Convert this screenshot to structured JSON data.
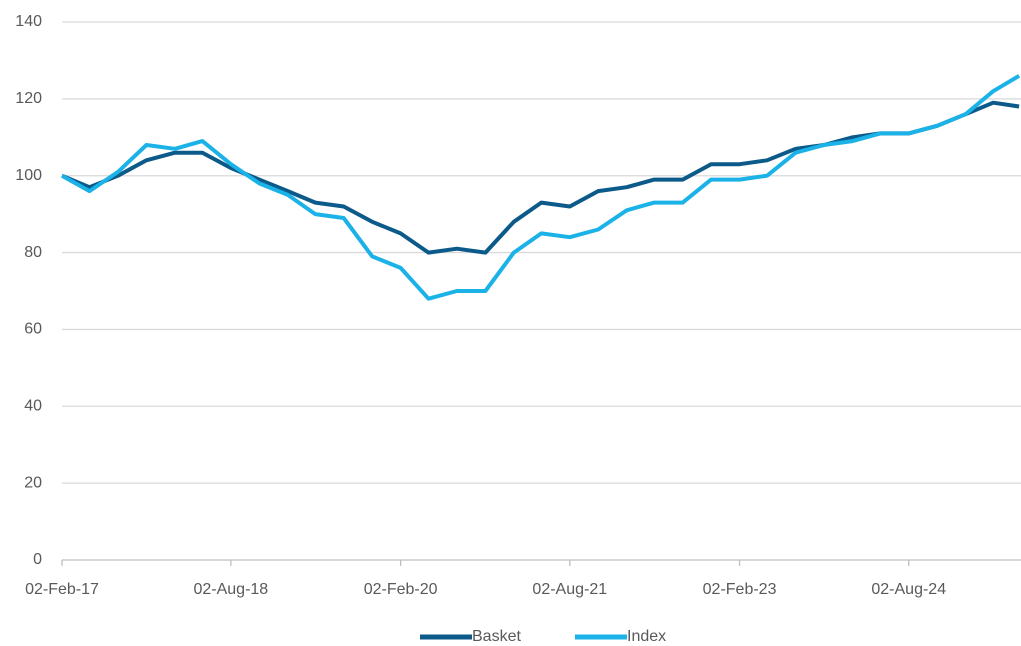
{
  "chart_data": {
    "type": "line",
    "x": [
      "2017-02-02",
      "2017-05-02",
      "2017-08-02",
      "2017-11-02",
      "2018-02-02",
      "2018-05-02",
      "2018-08-02",
      "2018-11-02",
      "2019-02-02",
      "2019-05-02",
      "2019-08-02",
      "2019-11-02",
      "2020-02-02",
      "2020-05-02",
      "2020-08-02",
      "2020-11-02",
      "2021-02-02",
      "2021-05-02",
      "2021-08-02",
      "2021-11-02",
      "2022-02-02",
      "2022-05-02",
      "2022-08-02",
      "2022-11-02",
      "2023-02-02",
      "2023-05-02",
      "2023-08-02",
      "2023-11-02",
      "2024-02-02",
      "2024-05-02",
      "2024-08-02",
      "2024-11-02",
      "2025-02-02",
      "2025-05-02",
      "2025-07-25"
    ],
    "series": [
      {
        "name": "Basket",
        "color": "#0b5a8a",
        "values": [
          100,
          97,
          100,
          104,
          106,
          106,
          102,
          99,
          96,
          93,
          92,
          88,
          85,
          80,
          81,
          80,
          88,
          93,
          92,
          96,
          97,
          99,
          99,
          103,
          103,
          104,
          107,
          108,
          110,
          111,
          111,
          113,
          116,
          119,
          118
        ]
      },
      {
        "name": "Index",
        "color": "#1bb2e8",
        "values": [
          100,
          96,
          101,
          108,
          107,
          109,
          103,
          98,
          95,
          90,
          89,
          79,
          76,
          68,
          70,
          70,
          80,
          85,
          84,
          86,
          91,
          93,
          93,
          99,
          99,
          100,
          106,
          108,
          109,
          111,
          111,
          113,
          116,
          122,
          126
        ]
      }
    ],
    "xlim": [
      "2017-02-02",
      "2025-07-31"
    ],
    "xticks": [
      {
        "value": "2017-02-02",
        "label": "02-Feb-17"
      },
      {
        "value": "2018-08-02",
        "label": "02-Aug-18"
      },
      {
        "value": "2020-02-02",
        "label": "02-Feb-20"
      },
      {
        "value": "2021-08-02",
        "label": "02-Aug-21"
      },
      {
        "value": "2023-02-02",
        "label": "02-Feb-23"
      },
      {
        "value": "2024-08-02",
        "label": "02-Aug-24"
      }
    ],
    "ylim": [
      0,
      140
    ],
    "yticks": [
      0,
      20,
      40,
      60,
      80,
      100,
      120,
      140
    ],
    "grid": true,
    "legend": "bottom"
  }
}
